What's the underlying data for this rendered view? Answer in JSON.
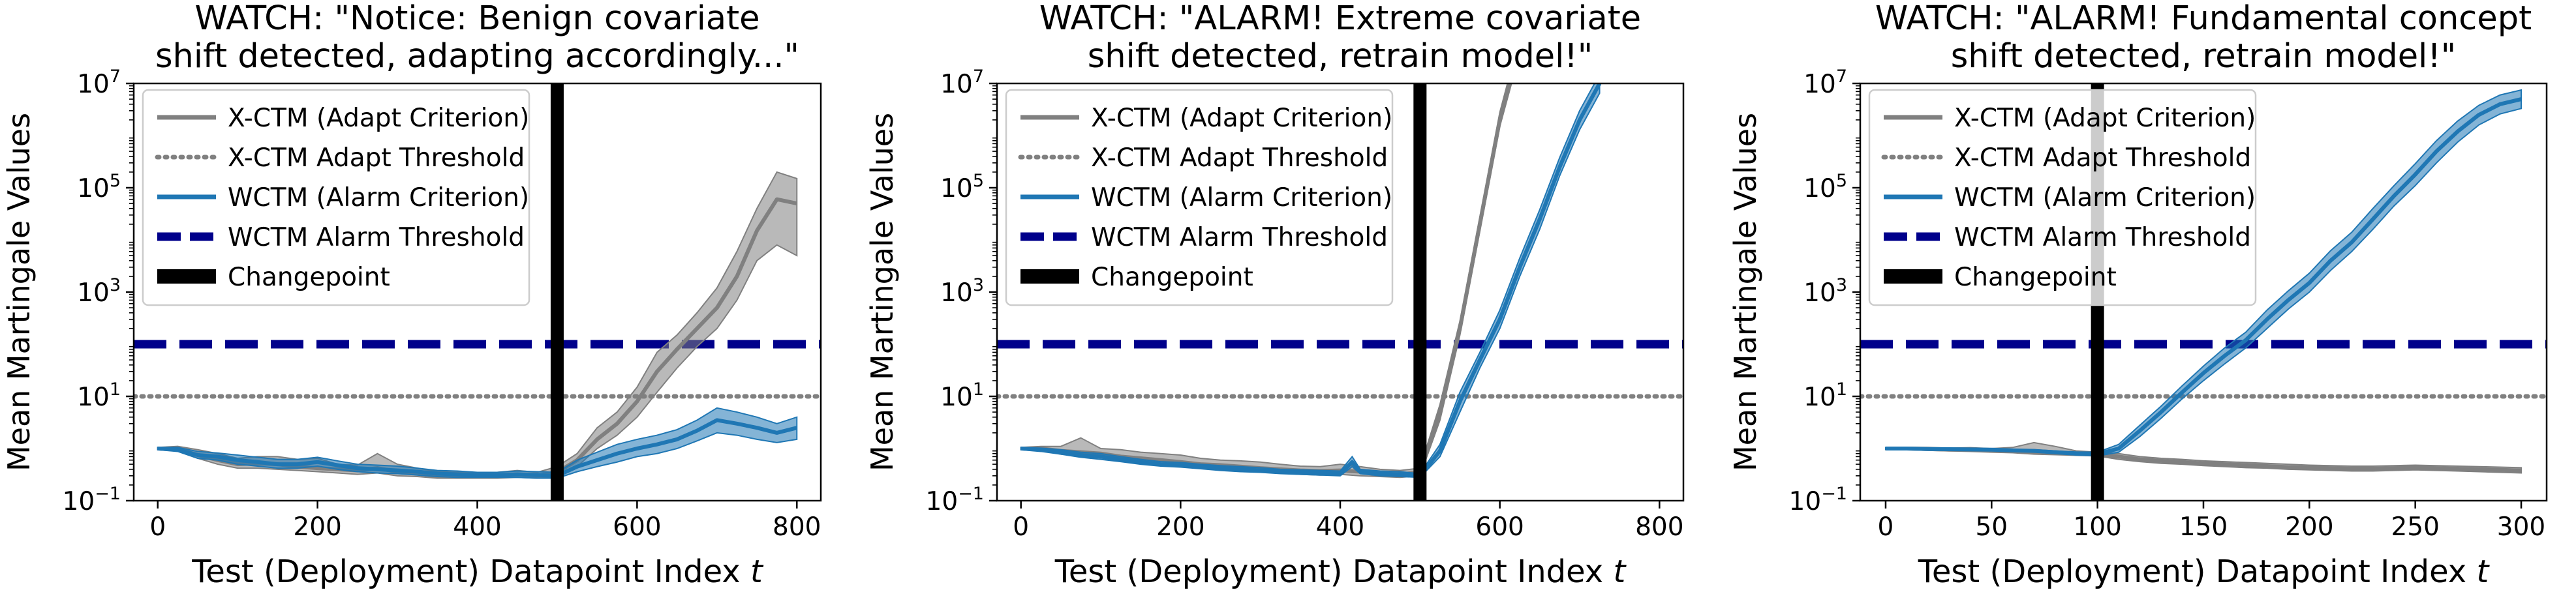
{
  "figure": {
    "panels": [
      {
        "title_lines": [
          "WATCH: \"Notice: Benign covariate",
          "shift detected, adapting accordingly...\""
        ]
      },
      {
        "title_lines": [
          "WATCH: \"ALARM! Extreme covariate",
          "shift detected, retrain model!\""
        ]
      },
      {
        "title_lines": [
          "WATCH: \"ALARM! Fundamental concept",
          "shift detected, retrain model!\""
        ]
      }
    ]
  },
  "chart_data": [
    {
      "type": "line",
      "title": "WATCH: \"Notice: Benign covariate shift detected, adapting accordingly...\"",
      "xlabel": "Test (Deployment) Datapoint Index t",
      "ylabel": "Mean Martingale Values",
      "yscale": "log",
      "xlim": [
        -30,
        830
      ],
      "ylim": [
        0.1,
        10000000
      ],
      "xticks": [
        0,
        200,
        400,
        600,
        800
      ],
      "yticks": [
        0.1,
        10,
        1000,
        100000,
        10000000
      ],
      "ytick_labels": [
        [
          "10",
          "−1"
        ],
        [
          "10",
          "1"
        ],
        [
          "10",
          "3"
        ],
        [
          "10",
          "5"
        ],
        [
          "10",
          "7"
        ]
      ],
      "legend_position": "upper-left",
      "grid": false,
      "changepoint": 500,
      "series": [
        {
          "name": "X-CTM (Adapt Criterion)",
          "style": "solid",
          "color": "#808080",
          "x": [
            0,
            25,
            50,
            75,
            100,
            125,
            150,
            175,
            200,
            225,
            250,
            275,
            300,
            325,
            350,
            375,
            400,
            425,
            450,
            475,
            500,
            525,
            550,
            575,
            600,
            625,
            650,
            675,
            700,
            725,
            750,
            775,
            800
          ],
          "y": [
            1.0,
            0.98,
            0.75,
            0.6,
            0.5,
            0.52,
            0.5,
            0.45,
            0.42,
            0.4,
            0.38,
            0.42,
            0.36,
            0.33,
            0.3,
            0.3,
            0.3,
            0.3,
            0.32,
            0.3,
            0.35,
            0.6,
            1.5,
            3,
            8,
            30,
            80,
            200,
            500,
            2000,
            15000,
            60000,
            50000
          ],
          "band_low": [
            0.95,
            0.9,
            0.65,
            0.5,
            0.42,
            0.42,
            0.4,
            0.38,
            0.36,
            0.34,
            0.32,
            0.34,
            0.3,
            0.29,
            0.27,
            0.27,
            0.27,
            0.27,
            0.28,
            0.27,
            0.3,
            0.45,
            1.0,
            1.8,
            4,
            12,
            35,
            90,
            200,
            700,
            4000,
            8000,
            5000
          ],
          "band_high": [
            1.05,
            1.1,
            0.95,
            0.8,
            0.65,
            0.7,
            0.7,
            0.62,
            0.65,
            0.5,
            0.48,
            0.8,
            0.5,
            0.42,
            0.36,
            0.35,
            0.35,
            0.35,
            0.38,
            0.35,
            0.45,
            0.8,
            2.5,
            5,
            15,
            70,
            150,
            400,
            1200,
            6000,
            40000,
            200000,
            150000
          ]
        },
        {
          "name": "X-CTM Adapt Threshold",
          "style": "dotted",
          "color": "#808080",
          "value": 10
        },
        {
          "name": "WCTM (Alarm Criterion)",
          "style": "solid",
          "color": "#1f77b4",
          "x": [
            0,
            25,
            50,
            75,
            100,
            125,
            150,
            175,
            200,
            225,
            250,
            275,
            300,
            325,
            350,
            375,
            400,
            425,
            450,
            475,
            500,
            525,
            550,
            575,
            600,
            625,
            650,
            675,
            700,
            725,
            750,
            775,
            800
          ],
          "y": [
            1.0,
            0.95,
            0.75,
            0.7,
            0.6,
            0.55,
            0.5,
            0.5,
            0.55,
            0.48,
            0.42,
            0.4,
            0.38,
            0.36,
            0.33,
            0.32,
            0.31,
            0.31,
            0.32,
            0.31,
            0.3,
            0.45,
            0.6,
            0.8,
            1.0,
            1.2,
            1.5,
            2.2,
            3.5,
            3.0,
            2.5,
            2.0,
            2.5
          ],
          "band_low": [
            0.95,
            0.88,
            0.65,
            0.6,
            0.5,
            0.46,
            0.42,
            0.42,
            0.46,
            0.4,
            0.36,
            0.34,
            0.33,
            0.31,
            0.29,
            0.28,
            0.28,
            0.28,
            0.28,
            0.27,
            0.27,
            0.36,
            0.45,
            0.55,
            0.7,
            0.8,
            1.0,
            1.4,
            2.0,
            1.8,
            1.5,
            1.3,
            1.5
          ],
          "band_high": [
            1.05,
            1.05,
            0.88,
            0.82,
            0.75,
            0.68,
            0.62,
            0.62,
            0.68,
            0.58,
            0.5,
            0.48,
            0.46,
            0.42,
            0.38,
            0.37,
            0.35,
            0.35,
            0.37,
            0.36,
            0.35,
            0.6,
            0.85,
            1.2,
            1.5,
            1.8,
            2.3,
            3.5,
            6,
            5,
            4,
            3,
            4
          ]
        },
        {
          "name": "WCTM Alarm Threshold",
          "style": "dashed",
          "color": "#00008b",
          "value": 100
        },
        {
          "name": "Changepoint",
          "style": "vline",
          "color": "#000000",
          "value": 500
        }
      ]
    },
    {
      "type": "line",
      "title": "WATCH: \"ALARM! Extreme covariate shift detected, retrain model!\"",
      "xlabel": "Test (Deployment) Datapoint Index t",
      "ylabel": "Mean Martingale Values",
      "yscale": "log",
      "xlim": [
        -30,
        830
      ],
      "ylim": [
        0.1,
        10000000
      ],
      "xticks": [
        0,
        200,
        400,
        600,
        800
      ],
      "yticks": [
        0.1,
        10,
        1000,
        100000,
        10000000
      ],
      "ytick_labels": [
        [
          "10",
          "−1"
        ],
        [
          "10",
          "1"
        ],
        [
          "10",
          "3"
        ],
        [
          "10",
          "5"
        ],
        [
          "10",
          "7"
        ]
      ],
      "legend_position": "upper-left",
      "grid": false,
      "changepoint": 500,
      "series": [
        {
          "name": "X-CTM (Adapt Criterion)",
          "style": "solid",
          "color": "#808080",
          "x": [
            0,
            25,
            50,
            75,
            100,
            125,
            150,
            175,
            200,
            225,
            250,
            275,
            300,
            325,
            350,
            375,
            400,
            425,
            450,
            475,
            500,
            525,
            550,
            575,
            600,
            620
          ],
          "y": [
            1.0,
            1.0,
            0.9,
            0.85,
            0.8,
            0.7,
            0.65,
            0.6,
            0.55,
            0.5,
            0.48,
            0.45,
            0.42,
            0.4,
            0.38,
            0.37,
            0.38,
            0.36,
            0.33,
            0.32,
            0.35,
            5,
            200,
            20000,
            2000000,
            30000000
          ],
          "band_low": [
            0.95,
            0.92,
            0.78,
            0.72,
            0.66,
            0.58,
            0.52,
            0.5,
            0.46,
            0.42,
            0.4,
            0.38,
            0.36,
            0.34,
            0.32,
            0.31,
            0.32,
            0.3,
            0.29,
            0.28,
            0.3,
            3.5,
            150,
            15000,
            1500000,
            20000000
          ],
          "band_high": [
            1.05,
            1.1,
            1.1,
            1.6,
            1.0,
            0.95,
            0.85,
            0.8,
            0.75,
            0.65,
            0.6,
            0.58,
            0.55,
            0.5,
            0.46,
            0.45,
            0.5,
            0.45,
            0.4,
            0.38,
            0.42,
            7,
            280,
            28000,
            2800000,
            40000000
          ]
        },
        {
          "name": "X-CTM Adapt Threshold",
          "style": "dotted",
          "color": "#808080",
          "value": 10
        },
        {
          "name": "WCTM (Alarm Criterion)",
          "style": "solid",
          "color": "#1f77b4",
          "x": [
            0,
            25,
            50,
            75,
            100,
            125,
            150,
            175,
            200,
            225,
            250,
            275,
            300,
            325,
            350,
            375,
            400,
            415,
            425,
            450,
            475,
            500,
            525,
            550,
            575,
            600,
            625,
            650,
            675,
            700,
            725
          ],
          "y": [
            1.0,
            0.95,
            0.85,
            0.75,
            0.7,
            0.62,
            0.55,
            0.5,
            0.48,
            0.45,
            0.42,
            0.4,
            0.38,
            0.36,
            0.35,
            0.34,
            0.33,
            0.55,
            0.36,
            0.33,
            0.32,
            0.3,
            0.9,
            8,
            50,
            300,
            3000,
            25000,
            250000,
            2000000,
            10000000
          ],
          "band_low": [
            0.95,
            0.88,
            0.78,
            0.68,
            0.62,
            0.56,
            0.5,
            0.46,
            0.44,
            0.41,
            0.38,
            0.36,
            0.35,
            0.33,
            0.32,
            0.31,
            0.3,
            0.45,
            0.33,
            0.3,
            0.29,
            0.28,
            0.7,
            5,
            35,
            200,
            2000,
            16000,
            170000,
            1300000,
            6500000
          ],
          "band_high": [
            1.05,
            1.02,
            0.95,
            0.85,
            0.8,
            0.7,
            0.62,
            0.56,
            0.54,
            0.5,
            0.47,
            0.45,
            0.43,
            0.4,
            0.39,
            0.38,
            0.37,
            0.7,
            0.4,
            0.37,
            0.36,
            0.33,
            1.2,
            12,
            70,
            450,
            4500,
            38000,
            380000,
            3000000,
            15000000
          ]
        },
        {
          "name": "WCTM Alarm Threshold",
          "style": "dashed",
          "color": "#00008b",
          "value": 100
        },
        {
          "name": "Changepoint",
          "style": "vline",
          "color": "#000000",
          "value": 500
        }
      ]
    },
    {
      "type": "line",
      "title": "WATCH: \"ALARM! Fundamental concept shift detected, retrain model!\"",
      "xlabel": "Test (Deployment) Datapoint Index t",
      "ylabel": "Mean Martingale Values",
      "yscale": "log",
      "xlim": [
        -12,
        312
      ],
      "ylim": [
        0.1,
        10000000
      ],
      "xticks": [
        0,
        50,
        100,
        150,
        200,
        250,
        300
      ],
      "yticks": [
        0.1,
        10,
        1000,
        100000,
        10000000
      ],
      "ytick_labels": [
        [
          "10",
          "−1"
        ],
        [
          "10",
          "1"
        ],
        [
          "10",
          "3"
        ],
        [
          "10",
          "5"
        ],
        [
          "10",
          "7"
        ]
      ],
      "legend_position": "upper-left",
      "grid": false,
      "changepoint": 100,
      "series": [
        {
          "name": "X-CTM (Adapt Criterion)",
          "style": "solid",
          "color": "#808080",
          "x": [
            0,
            10,
            20,
            30,
            40,
            50,
            60,
            70,
            80,
            90,
            100,
            110,
            120,
            130,
            140,
            150,
            160,
            170,
            180,
            190,
            200,
            210,
            220,
            230,
            240,
            250,
            260,
            270,
            280,
            290,
            300
          ],
          "y": [
            1.0,
            1.0,
            0.98,
            0.95,
            0.95,
            0.92,
            0.9,
            0.85,
            0.82,
            0.8,
            0.78,
            0.7,
            0.62,
            0.58,
            0.55,
            0.52,
            0.5,
            0.48,
            0.46,
            0.44,
            0.43,
            0.42,
            0.41,
            0.41,
            0.42,
            0.43,
            0.42,
            0.41,
            0.4,
            0.39,
            0.38
          ],
          "band_low": [
            0.95,
            0.95,
            0.92,
            0.9,
            0.88,
            0.85,
            0.83,
            0.78,
            0.76,
            0.74,
            0.72,
            0.62,
            0.56,
            0.52,
            0.5,
            0.47,
            0.45,
            0.43,
            0.42,
            0.4,
            0.39,
            0.38,
            0.37,
            0.37,
            0.38,
            0.39,
            0.38,
            0.37,
            0.36,
            0.35,
            0.34
          ],
          "band_high": [
            1.05,
            1.06,
            1.05,
            1.02,
            1.04,
            1.0,
            1.05,
            1.3,
            1.1,
            0.9,
            0.85,
            0.8,
            0.7,
            0.65,
            0.62,
            0.58,
            0.56,
            0.54,
            0.52,
            0.5,
            0.48,
            0.47,
            0.46,
            0.46,
            0.47,
            0.48,
            0.47,
            0.46,
            0.45,
            0.44,
            0.43
          ]
        },
        {
          "name": "X-CTM Adapt Threshold",
          "style": "dotted",
          "color": "#808080",
          "value": 10
        },
        {
          "name": "WCTM (Alarm Criterion)",
          "style": "solid",
          "color": "#1f77b4",
          "x": [
            0,
            10,
            20,
            30,
            40,
            50,
            60,
            70,
            80,
            90,
            100,
            110,
            120,
            130,
            140,
            150,
            160,
            170,
            180,
            190,
            200,
            210,
            220,
            230,
            240,
            250,
            260,
            270,
            280,
            290,
            300
          ],
          "y": [
            1.0,
            1.0,
            0.98,
            0.97,
            0.96,
            0.95,
            0.92,
            0.9,
            0.85,
            0.8,
            0.78,
            1.0,
            2.2,
            5,
            12,
            28,
            60,
            120,
            300,
            700,
            1500,
            4000,
            9000,
            25000,
            70000,
            180000,
            500000,
            1200000,
            2500000,
            4000000,
            5000000
          ],
          "band_low": [
            0.96,
            0.96,
            0.94,
            0.93,
            0.92,
            0.91,
            0.88,
            0.86,
            0.8,
            0.75,
            0.72,
            0.85,
            1.7,
            3.8,
            9,
            20,
            42,
            85,
            200,
            470,
            1000,
            2600,
            6000,
            16000,
            45000,
            110000,
            300000,
            750000,
            1600000,
            2600000,
            3300000
          ],
          "band_high": [
            1.04,
            1.04,
            1.02,
            1.01,
            1.0,
            0.99,
            0.96,
            0.95,
            0.9,
            0.86,
            0.85,
            1.2,
            2.8,
            6.5,
            16,
            38,
            85,
            170,
            450,
            1050,
            2300,
            6200,
            14000,
            40000,
            110000,
            290000,
            800000,
            1900000,
            3800000,
            6000000,
            7500000
          ]
        },
        {
          "name": "WCTM Alarm Threshold",
          "style": "dashed",
          "color": "#00008b",
          "value": 100
        },
        {
          "name": "Changepoint",
          "style": "vline",
          "color": "#000000",
          "value": 100
        }
      ]
    }
  ]
}
